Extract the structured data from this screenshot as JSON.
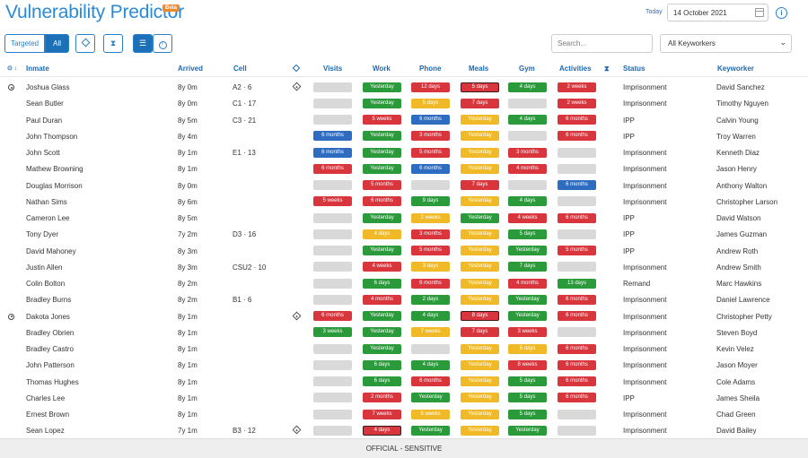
{
  "header": {
    "title": "Vulnerability Predictor",
    "badge": "Beta",
    "today_label": "Today",
    "date_value": "14 October 2021",
    "info_icon": "info-icon"
  },
  "toolbar": {
    "targeted_label": "Targeted",
    "all_label": "All",
    "search_placeholder": "Search...",
    "keyworker_selected": "All Keyworkers"
  },
  "colors": {
    "accent": "#2b8ad6",
    "red": "#d8353d",
    "green": "#2a9a3a",
    "yellow": "#f0b928",
    "blue": "#2d6cc0",
    "grey": "#d9d9d9"
  },
  "columns": {
    "inmate": "Inmate",
    "arrived": "Arrived",
    "cell": "Cell",
    "visits": "Visits",
    "work": "Work",
    "phone": "Phone",
    "meals": "Meals",
    "gym": "Gym",
    "activities": "Activities",
    "status": "Status",
    "keyworker": "Keyworker"
  },
  "rows": [
    {
      "pin": true,
      "name": "Joshua Glass",
      "arrived": "8y 0m",
      "cell": "A2 · 6",
      "diamond": true,
      "visits": {
        "text": "",
        "color": "grey"
      },
      "work": {
        "text": "Yesterday",
        "color": "green"
      },
      "phone": {
        "text": "12 days",
        "color": "red"
      },
      "meals": {
        "text": "5 days",
        "color": "red",
        "outlined": true
      },
      "gym": {
        "text": "4 days",
        "color": "green"
      },
      "activities": {
        "text": "2 weeks",
        "color": "red"
      },
      "status": "Imprisonment",
      "keyworker": "David Sanchez"
    },
    {
      "pin": false,
      "name": "Sean Butler",
      "arrived": "8y 0m",
      "cell": "C1 · 17",
      "diamond": false,
      "visits": {
        "text": "",
        "color": "grey"
      },
      "work": {
        "text": "Yesterday",
        "color": "green"
      },
      "phone": {
        "text": "5 days",
        "color": "yellow"
      },
      "meals": {
        "text": "7 days",
        "color": "red"
      },
      "gym": {
        "text": "",
        "color": "grey"
      },
      "activities": {
        "text": "2 weeks",
        "color": "red"
      },
      "status": "Imprisonment",
      "keyworker": "Timothy Nguyen"
    },
    {
      "pin": false,
      "name": "Paul Duran",
      "arrived": "8y 5m",
      "cell": "C3 · 21",
      "diamond": false,
      "visits": {
        "text": "",
        "color": "grey"
      },
      "work": {
        "text": "5 weeks",
        "color": "red"
      },
      "phone": {
        "text": "6 months",
        "color": "blue"
      },
      "meals": {
        "text": "Yesterday",
        "color": "yellow"
      },
      "gym": {
        "text": "4 days",
        "color": "green"
      },
      "activities": {
        "text": "6 months",
        "color": "red"
      },
      "status": "IPP",
      "keyworker": "Calvin Young"
    },
    {
      "pin": false,
      "name": "John Thompson",
      "arrived": "8y 4m",
      "cell": "",
      "diamond": false,
      "visits": {
        "text": "6 months",
        "color": "blue"
      },
      "work": {
        "text": "Yesterday",
        "color": "green"
      },
      "phone": {
        "text": "3 months",
        "color": "red"
      },
      "meals": {
        "text": "Yesterday",
        "color": "yellow"
      },
      "gym": {
        "text": "",
        "color": "grey"
      },
      "activities": {
        "text": "6 months",
        "color": "red"
      },
      "status": "IPP",
      "keyworker": "Troy Warren"
    },
    {
      "pin": false,
      "name": "John Scott",
      "arrived": "8y 1m",
      "cell": "E1 · 13",
      "diamond": false,
      "visits": {
        "text": "6 months",
        "color": "blue"
      },
      "work": {
        "text": "Yesterday",
        "color": "green"
      },
      "phone": {
        "text": "5 months",
        "color": "red"
      },
      "meals": {
        "text": "Yesterday",
        "color": "yellow"
      },
      "gym": {
        "text": "3 months",
        "color": "red"
      },
      "activities": {
        "text": "",
        "color": "grey"
      },
      "status": "Imprisonment",
      "keyworker": "Kenneth Diaz"
    },
    {
      "pin": false,
      "name": "Mathew Browning",
      "arrived": "8y 1m",
      "cell": "",
      "diamond": false,
      "visits": {
        "text": "6 months",
        "color": "red"
      },
      "work": {
        "text": "Yesterday",
        "color": "green"
      },
      "phone": {
        "text": "6 months",
        "color": "blue"
      },
      "meals": {
        "text": "Yesterday",
        "color": "yellow"
      },
      "gym": {
        "text": "4 months",
        "color": "red"
      },
      "activities": {
        "text": "",
        "color": "grey"
      },
      "status": "Imprisonment",
      "keyworker": "Jason Henry"
    },
    {
      "pin": false,
      "name": "Douglas Morrison",
      "arrived": "8y 0m",
      "cell": "",
      "diamond": false,
      "visits": {
        "text": "",
        "color": "grey"
      },
      "work": {
        "text": "5 months",
        "color": "red"
      },
      "phone": {
        "text": "",
        "color": "grey"
      },
      "meals": {
        "text": "7 days",
        "color": "red"
      },
      "gym": {
        "text": "",
        "color": "grey"
      },
      "activities": {
        "text": "6 months",
        "color": "blue"
      },
      "status": "Imprisonment",
      "keyworker": "Anthony Walton"
    },
    {
      "pin": false,
      "name": "Nathan Sims",
      "arrived": "8y 6m",
      "cell": "",
      "diamond": false,
      "visits": {
        "text": "5 weeks",
        "color": "red"
      },
      "work": {
        "text": "6 months",
        "color": "red"
      },
      "phone": {
        "text": "9 days",
        "color": "green"
      },
      "meals": {
        "text": "Yesterday",
        "color": "yellow"
      },
      "gym": {
        "text": "4 days",
        "color": "green"
      },
      "activities": {
        "text": "",
        "color": "grey"
      },
      "status": "Imprisonment",
      "keyworker": "Christopher Larson"
    },
    {
      "pin": false,
      "name": "Cameron Lee",
      "arrived": "8y 5m",
      "cell": "",
      "diamond": false,
      "visits": {
        "text": "",
        "color": "grey"
      },
      "work": {
        "text": "Yesterday",
        "color": "green"
      },
      "phone": {
        "text": "2 weeks",
        "color": "yellow"
      },
      "meals": {
        "text": "Yesterday",
        "color": "green"
      },
      "gym": {
        "text": "4 weeks",
        "color": "red"
      },
      "activities": {
        "text": "6 months",
        "color": "red"
      },
      "status": "IPP",
      "keyworker": "David Watson"
    },
    {
      "pin": false,
      "name": "Tony Dyer",
      "arrived": "7y 2m",
      "cell": "D3 · 16",
      "diamond": false,
      "visits": {
        "text": "",
        "color": "grey"
      },
      "work": {
        "text": "4 days",
        "color": "yellow"
      },
      "phone": {
        "text": "3 months",
        "color": "red"
      },
      "meals": {
        "text": "Yesterday",
        "color": "yellow"
      },
      "gym": {
        "text": "5 days",
        "color": "green"
      },
      "activities": {
        "text": "",
        "color": "grey"
      },
      "status": "IPP",
      "keyworker": "James Guzman"
    },
    {
      "pin": false,
      "name": "David Mahoney",
      "arrived": "8y 3m",
      "cell": "",
      "diamond": false,
      "visits": {
        "text": "",
        "color": "grey"
      },
      "work": {
        "text": "Yesterday",
        "color": "green"
      },
      "phone": {
        "text": "5 months",
        "color": "red"
      },
      "meals": {
        "text": "Yesterday",
        "color": "yellow"
      },
      "gym": {
        "text": "Yesterday",
        "color": "green"
      },
      "activities": {
        "text": "5 months",
        "color": "red"
      },
      "status": "IPP",
      "keyworker": "Andrew Roth"
    },
    {
      "pin": false,
      "name": "Justin Allen",
      "arrived": "8y 3m",
      "cell": "CSU2 · 10",
      "diamond": false,
      "visits": {
        "text": "",
        "color": "grey"
      },
      "work": {
        "text": "4 weeks",
        "color": "red"
      },
      "phone": {
        "text": "3 days",
        "color": "yellow"
      },
      "meals": {
        "text": "Yesterday",
        "color": "yellow"
      },
      "gym": {
        "text": "7 days",
        "color": "green"
      },
      "activities": {
        "text": "",
        "color": "grey"
      },
      "status": "Imprisonment",
      "keyworker": "Andrew Smith"
    },
    {
      "pin": false,
      "name": "Colin Bolton",
      "arrived": "8y 2m",
      "cell": "",
      "diamond": false,
      "visits": {
        "text": "",
        "color": "grey"
      },
      "work": {
        "text": "6 days",
        "color": "green"
      },
      "phone": {
        "text": "6 months",
        "color": "red"
      },
      "meals": {
        "text": "Yesterday",
        "color": "yellow"
      },
      "gym": {
        "text": "4 months",
        "color": "red"
      },
      "activities": {
        "text": "13 days",
        "color": "green"
      },
      "status": "Remand",
      "keyworker": "Marc Hawkins"
    },
    {
      "pin": false,
      "name": "Bradley Burns",
      "arrived": "8y 2m",
      "cell": "B1 · 6",
      "diamond": false,
      "visits": {
        "text": "",
        "color": "grey"
      },
      "work": {
        "text": "4 months",
        "color": "red"
      },
      "phone": {
        "text": "2 days",
        "color": "green"
      },
      "meals": {
        "text": "Yesterday",
        "color": "yellow"
      },
      "gym": {
        "text": "Yesterday",
        "color": "green"
      },
      "activities": {
        "text": "6 months",
        "color": "red"
      },
      "status": "Imprisonment",
      "keyworker": "Daniel Lawrence"
    },
    {
      "pin": true,
      "name": "Dakota Jones",
      "arrived": "8y 1m",
      "cell": "",
      "diamond": true,
      "visits": {
        "text": "6 months",
        "color": "red"
      },
      "work": {
        "text": "Yesterday",
        "color": "green"
      },
      "phone": {
        "text": "4 days",
        "color": "green"
      },
      "meals": {
        "text": "8 days",
        "color": "red",
        "outlined": true
      },
      "gym": {
        "text": "Yesterday",
        "color": "green"
      },
      "activities": {
        "text": "6 months",
        "color": "red"
      },
      "status": "Imprisonment",
      "keyworker": "Christopher Petty"
    },
    {
      "pin": false,
      "name": "Bradley Obrien",
      "arrived": "8y 1m",
      "cell": "",
      "diamond": false,
      "visits": {
        "text": "3 weeks",
        "color": "green"
      },
      "work": {
        "text": "Yesterday",
        "color": "green"
      },
      "phone": {
        "text": "7 weeks",
        "color": "yellow"
      },
      "meals": {
        "text": "7 days",
        "color": "red"
      },
      "gym": {
        "text": "3 weeks",
        "color": "red"
      },
      "activities": {
        "text": "",
        "color": "grey"
      },
      "status": "Imprisonment",
      "keyworker": "Steven Boyd"
    },
    {
      "pin": false,
      "name": "Bradley Castro",
      "arrived": "8y 1m",
      "cell": "",
      "diamond": false,
      "visits": {
        "text": "",
        "color": "grey"
      },
      "work": {
        "text": "Yesterday",
        "color": "green"
      },
      "phone": {
        "text": "",
        "color": "grey"
      },
      "meals": {
        "text": "Yesterday",
        "color": "yellow"
      },
      "gym": {
        "text": "6 days",
        "color": "yellow"
      },
      "activities": {
        "text": "6 months",
        "color": "red"
      },
      "status": "Imprisonment",
      "keyworker": "Kevin Velez"
    },
    {
      "pin": false,
      "name": "John Patterson",
      "arrived": "8y 1m",
      "cell": "",
      "diamond": false,
      "visits": {
        "text": "",
        "color": "grey"
      },
      "work": {
        "text": "6 days",
        "color": "green"
      },
      "phone": {
        "text": "4 days",
        "color": "green"
      },
      "meals": {
        "text": "Yesterday",
        "color": "yellow"
      },
      "gym": {
        "text": "8 weeks",
        "color": "red"
      },
      "activities": {
        "text": "6 months",
        "color": "red"
      },
      "status": "Imprisonment",
      "keyworker": "Jason Moyer"
    },
    {
      "pin": false,
      "name": "Thomas Hughes",
      "arrived": "8y 1m",
      "cell": "",
      "diamond": false,
      "visits": {
        "text": "",
        "color": "grey"
      },
      "work": {
        "text": "6 days",
        "color": "green"
      },
      "phone": {
        "text": "6 months",
        "color": "red"
      },
      "meals": {
        "text": "Yesterday",
        "color": "yellow"
      },
      "gym": {
        "text": "5 days",
        "color": "green"
      },
      "activities": {
        "text": "6 months",
        "color": "red"
      },
      "status": "Imprisonment",
      "keyworker": "Cole Adams"
    },
    {
      "pin": false,
      "name": "Charles Lee",
      "arrived": "8y 1m",
      "cell": "",
      "diamond": false,
      "visits": {
        "text": "",
        "color": "grey"
      },
      "work": {
        "text": "2 months",
        "color": "red"
      },
      "phone": {
        "text": "Yesterday",
        "color": "green"
      },
      "meals": {
        "text": "Yesterday",
        "color": "yellow"
      },
      "gym": {
        "text": "5 days",
        "color": "green"
      },
      "activities": {
        "text": "6 months",
        "color": "red"
      },
      "status": "IPP",
      "keyworker": "James Sheila"
    },
    {
      "pin": false,
      "name": "Ernest Brown",
      "arrived": "8y 1m",
      "cell": "",
      "diamond": false,
      "visits": {
        "text": "",
        "color": "grey"
      },
      "work": {
        "text": "7 weeks",
        "color": "red"
      },
      "phone": {
        "text": "6 weeks",
        "color": "yellow"
      },
      "meals": {
        "text": "Yesterday",
        "color": "yellow"
      },
      "gym": {
        "text": "5 days",
        "color": "green"
      },
      "activities": {
        "text": "",
        "color": "grey"
      },
      "status": "Imprisonment",
      "keyworker": "Chad Green"
    },
    {
      "pin": false,
      "name": "Sean Lopez",
      "arrived": "7y 1m",
      "cell": "B3 · 12",
      "diamond": true,
      "visits": {
        "text": "",
        "color": "grey"
      },
      "work": {
        "text": "4 days",
        "color": "red",
        "outlined": true
      },
      "phone": {
        "text": "Yesterday",
        "color": "green"
      },
      "meals": {
        "text": "Yesterday",
        "color": "yellow"
      },
      "gym": {
        "text": "Yesterday",
        "color": "green"
      },
      "activities": {
        "text": "",
        "color": "grey"
      },
      "status": "Imprisonment",
      "keyworker": "David Bailey"
    }
  ],
  "footer": {
    "classification": "OFFICIAL - SENSITIVE"
  }
}
